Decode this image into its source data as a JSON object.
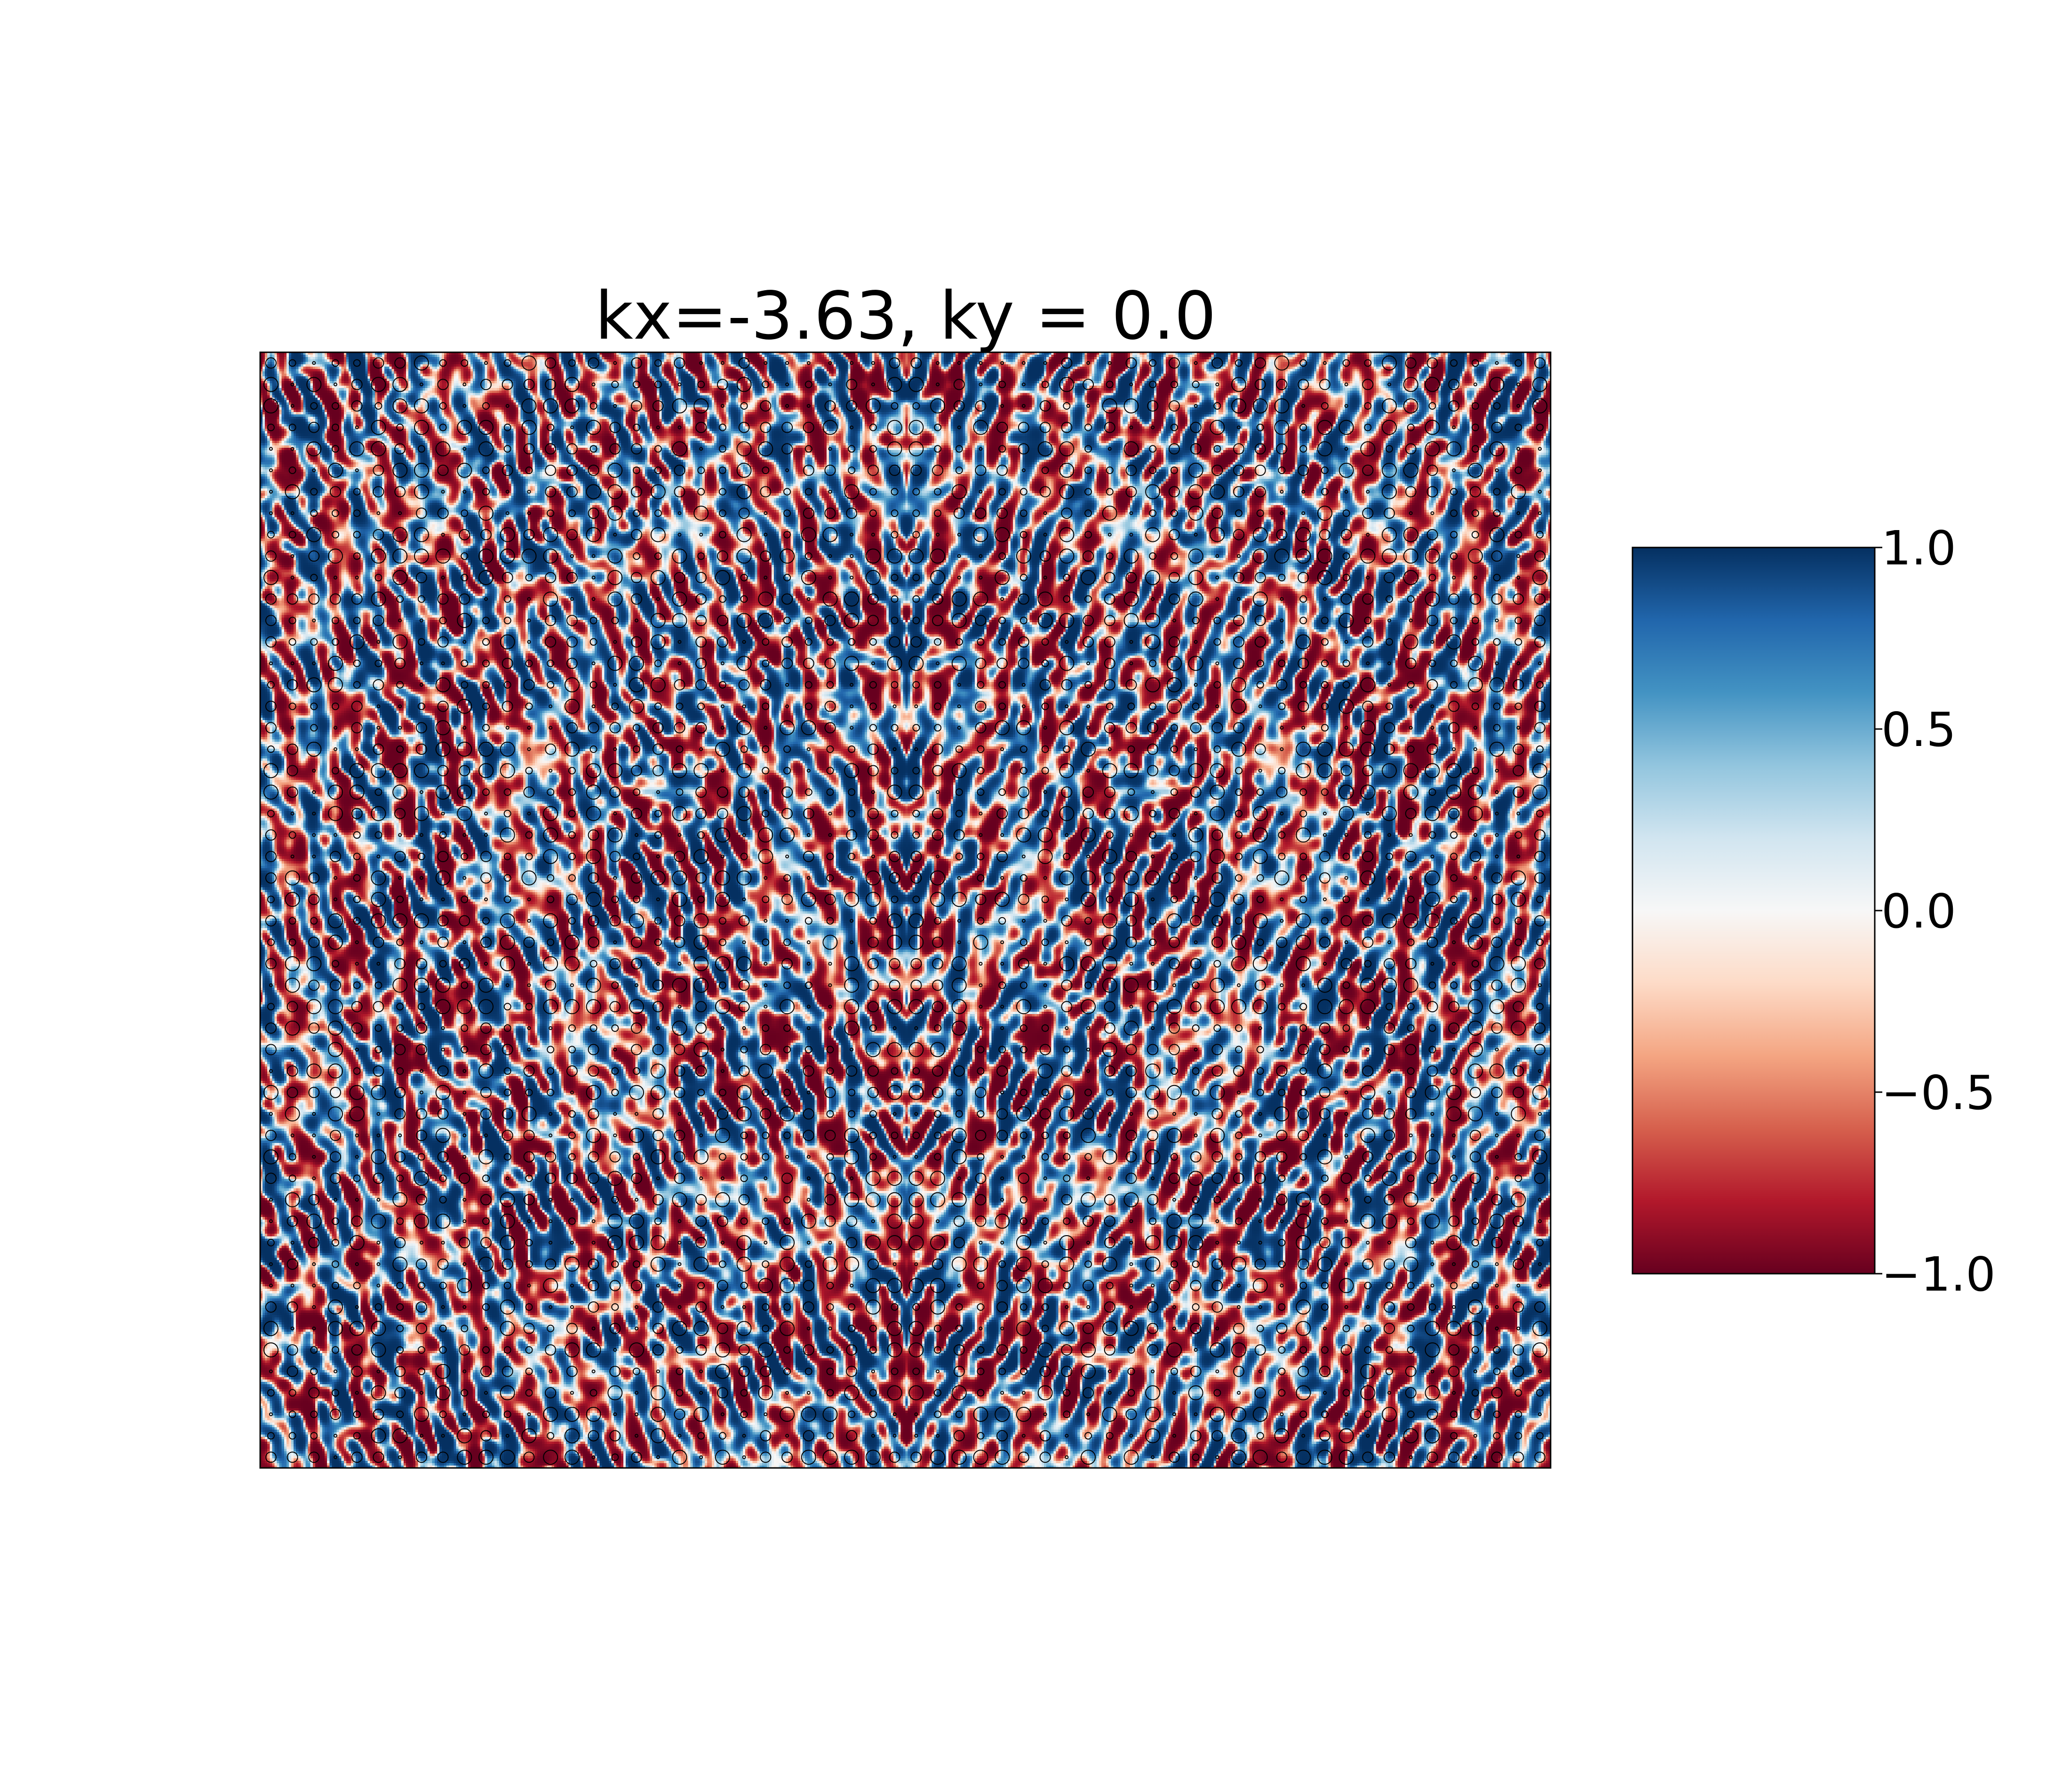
{
  "chart_data": {
    "type": "heatmap",
    "title": "kx=-3.63, ky = 0.0",
    "xlabel": "",
    "ylabel": "",
    "axes_visible": false,
    "grid": false,
    "colormap": "RdBu",
    "colormap_stops": [
      "#67001f",
      "#b2182b",
      "#d6604d",
      "#f4a582",
      "#fddbc7",
      "#f7f7f7",
      "#d1e5f0",
      "#92c5de",
      "#4393c3",
      "#2166ac",
      "#053061"
    ],
    "value_range": [
      -1.0,
      1.0
    ],
    "colorbar": {
      "placement": "right",
      "ticks": [
        1.0,
        0.5,
        0.0,
        -0.5,
        -1.0
      ],
      "tick_labels": [
        "1.0",
        "0.5",
        "0.0",
        "−0.5",
        "−1.0"
      ]
    },
    "marker_overlay": "hollow black circles at lattice sites of varying sizes",
    "symmetry": "mirror symmetric about vertical center line"
  }
}
